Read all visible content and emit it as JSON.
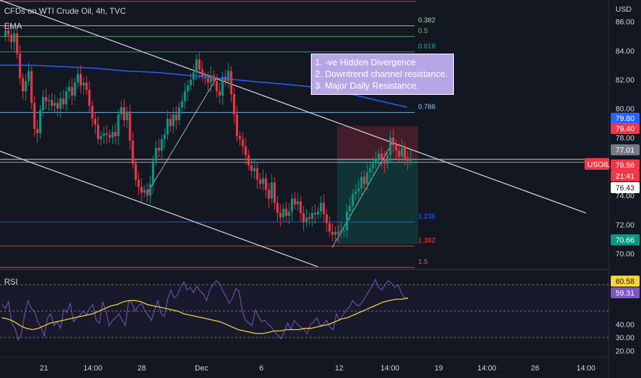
{
  "header": {
    "title": "CFDs on WTI Crude Oil, 4h, TVC",
    "indicator": "EMA",
    "currency": "USD"
  },
  "rsi": {
    "label": "RSI",
    "value_badge_1": "60.58",
    "value_badge_2": "59.31"
  },
  "annotation": {
    "lines": [
      "1. -ve Hidden Divergence",
      "2. Downtrend channel resistance.",
      "3. Major Daily Resistance."
    ]
  },
  "fib_labels": [
    {
      "label": "0.382",
      "price": 85.72,
      "color": "#a5d6a7"
    },
    {
      "label": "0.5",
      "price": 84.98,
      "color": "#66bb6a"
    },
    {
      "label": "0.618",
      "price": 83.92,
      "color": "#26a69a"
    },
    {
      "label": "0.786",
      "price": 79.74,
      "color": "#90caf9"
    },
    {
      "label": "1.236",
      "price": 72.18,
      "color": "#2962ff"
    },
    {
      "label": "1.382",
      "price": 70.52,
      "color": "#f44336"
    },
    {
      "label": "1.5",
      "price": 69.05,
      "color": "#ef5350"
    }
  ],
  "price_badges": [
    {
      "text": "79.80",
      "bg": "#2962ff",
      "fg": "#ffffff"
    },
    {
      "text": "79.40",
      "bg": "#f23645",
      "fg": "#ffffff"
    },
    {
      "text": "77.01",
      "bg": "#787b86",
      "fg": "#ffffff"
    },
    {
      "text": "76.56",
      "bg": "#f23645",
      "fg": "#ffffff"
    },
    {
      "text": "21:41",
      "bg": "#f23645",
      "fg": "#ffffff"
    },
    {
      "text": "76.43",
      "bg": "#ffffff",
      "fg": "#131722"
    },
    {
      "text": "70.66",
      "bg": "#089981",
      "fg": "#ffffff"
    }
  ],
  "symbol_badge": {
    "text": "USOIL",
    "bg": "#f23645",
    "fg": "#ffffff"
  },
  "chart_data": {
    "type": "candlestick",
    "title": "CFDs on WTI Crude Oil, 4h, TVC",
    "price_axis": {
      "ticks": [
        "86.00",
        "84.00",
        "82.00",
        "80.00",
        "78.00",
        "74.00",
        "72.00",
        "70.00"
      ],
      "range": [
        69.0,
        87.5
      ]
    },
    "rsi_axis": {
      "ticks": [
        "40.00",
        "30.00",
        "20.00"
      ],
      "range": [
        15,
        80
      ]
    },
    "time_axis": {
      "ticks": [
        "21",
        "14:00",
        "28",
        "Dec",
        "6",
        "12",
        "14:00",
        "19",
        "14:00",
        "26",
        "14:00"
      ]
    },
    "last_price": 76.56,
    "trade": {
      "entry": 76.5,
      "stop": 78.8,
      "target": 70.66
    },
    "candles_close": [
      85.4,
      85.1,
      84.6,
      85.2,
      83.8,
      82.1,
      81.2,
      81.9,
      82.6,
      80.4,
      78.6,
      78.3,
      79.9,
      80.8,
      80.5,
      80.6,
      80.2,
      80.4,
      80.0,
      80.7,
      80.3,
      81.2,
      81.5,
      80.9,
      81.8,
      82.4,
      81.6,
      81.8,
      81.3,
      80.2,
      79.3,
      78.9,
      77.9,
      78.1,
      78.3,
      78.2,
      78.0,
      78.4,
      78.1,
      79.6,
      80.1,
      79.2,
      79.8,
      77.8,
      76.2,
      75.1,
      74.6,
      74.2,
      74.4,
      74.0,
      74.8,
      76.4,
      77.3,
      77.1,
      77.9,
      78.2,
      79.3,
      78.8,
      79.6,
      79.2,
      80.1,
      80.5,
      81.2,
      81.6,
      82.0,
      82.5,
      83.4,
      82.7,
      82.2,
      82.1,
      81.8,
      82.3,
      81.9,
      81.2,
      80.9,
      82.2,
      81.9,
      82.6,
      81.0,
      79.6,
      78.1,
      77.9,
      77.4,
      76.8,
      76.1,
      75.7,
      75.9,
      75.1,
      74.8,
      75.2,
      74.4,
      73.8,
      74.9,
      73.5,
      72.8,
      72.5,
      73.1,
      72.6,
      72.9,
      73.8,
      73.4,
      73.6,
      72.8,
      72.2,
      72.5,
      72.4,
      72.8,
      72.7,
      72.9,
      73.5,
      72.7,
      72.1,
      71.5,
      71.3,
      71.5,
      71.4,
      71.6,
      71.6,
      72.9,
      73.3,
      74.1,
      74.3,
      74.5,
      75.3,
      74.8,
      75.6,
      75.9,
      76.2,
      76.5,
      76.9,
      76.5,
      76.2,
      76.8,
      78.0,
      77.5,
      77.1,
      76.7,
      77.3,
      76.6,
      76.4,
      76.56
    ],
    "ema": [
      83.0,
      83.0,
      82.9,
      82.8,
      82.6,
      82.5,
      82.3,
      82.1,
      81.9,
      81.7,
      81.5,
      81.1,
      80.6,
      80.1
    ],
    "rsi_values": [
      55,
      52,
      57,
      41,
      37,
      28,
      33,
      48,
      58,
      52,
      50,
      42,
      38,
      31,
      45,
      48,
      39,
      42,
      37,
      51,
      49,
      56,
      42,
      45,
      47,
      50,
      47,
      52,
      55,
      43,
      41,
      57,
      50,
      39,
      43,
      45,
      48,
      43,
      39,
      58,
      56,
      50,
      54,
      56,
      50,
      47,
      43,
      51,
      58,
      48,
      46,
      59,
      66,
      60,
      62,
      68,
      72,
      66,
      68,
      64,
      69,
      65,
      63,
      58,
      66,
      70,
      73,
      71,
      65,
      61,
      56,
      60,
      67,
      65,
      50,
      43,
      41,
      39,
      51,
      46,
      42,
      43,
      40,
      38,
      34,
      32,
      29,
      35,
      41,
      36,
      43,
      40,
      38,
      36,
      33,
      40,
      42,
      45,
      39,
      40,
      43,
      38,
      36,
      48,
      43,
      47,
      51,
      53,
      58,
      55,
      54,
      57,
      61,
      65,
      69,
      74,
      68,
      66,
      70,
      73,
      71,
      68,
      70,
      64,
      60,
      59
    ],
    "rsi_ma": [
      45,
      44,
      42,
      39,
      37,
      36,
      37,
      39,
      41,
      42,
      43,
      44,
      45,
      46,
      47,
      48,
      50,
      52,
      54,
      55,
      57,
      58,
      58,
      57,
      55,
      54,
      53,
      52,
      51,
      50,
      48,
      47,
      46,
      45,
      44,
      43,
      42,
      40,
      38,
      36,
      35,
      34,
      33,
      33,
      34,
      35,
      35,
      36,
      36,
      36,
      37,
      37,
      38,
      39,
      40,
      42,
      44,
      45,
      47,
      49,
      51,
      53,
      55,
      57,
      58,
      59,
      59,
      60
    ]
  }
}
